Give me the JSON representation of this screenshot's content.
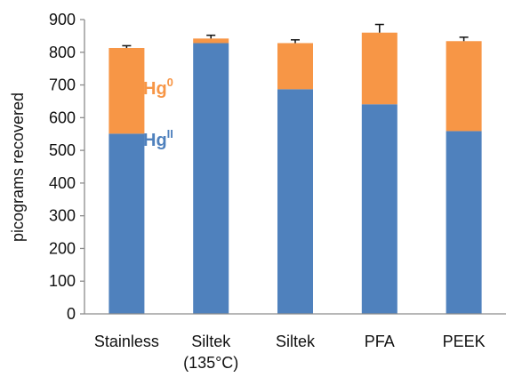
{
  "chart_data": {
    "type": "bar",
    "stacked": true,
    "categories": [
      [
        "Stainless"
      ],
      [
        "Siltek",
        "(135°C)"
      ],
      [
        "Siltek"
      ],
      [
        "PFA"
      ],
      [
        "PEEK"
      ]
    ],
    "series": [
      {
        "name": "Hgᴵᴵ",
        "values": [
          551,
          828,
          687,
          641,
          559
        ],
        "color": "#4f81bd"
      },
      {
        "name": "Hg⁰",
        "values": [
          262,
          14,
          141,
          219,
          275
        ],
        "color": "#f79646"
      }
    ],
    "error_bars": [
      7,
      10,
      10,
      25,
      12
    ],
    "ylabel": "picograms recovered",
    "ylim": [
      0,
      900
    ],
    "yticks": [
      0,
      100,
      200,
      300,
      400,
      500,
      600,
      700,
      800,
      900
    ],
    "grid": false,
    "legend": "inline annotations on first bar",
    "annotations": {
      "hg0": {
        "base": "Hg",
        "sup": "0",
        "color": "#f79646"
      },
      "hg2": {
        "base": "Hg",
        "sup": "II",
        "color": "#4f81bd"
      }
    }
  }
}
